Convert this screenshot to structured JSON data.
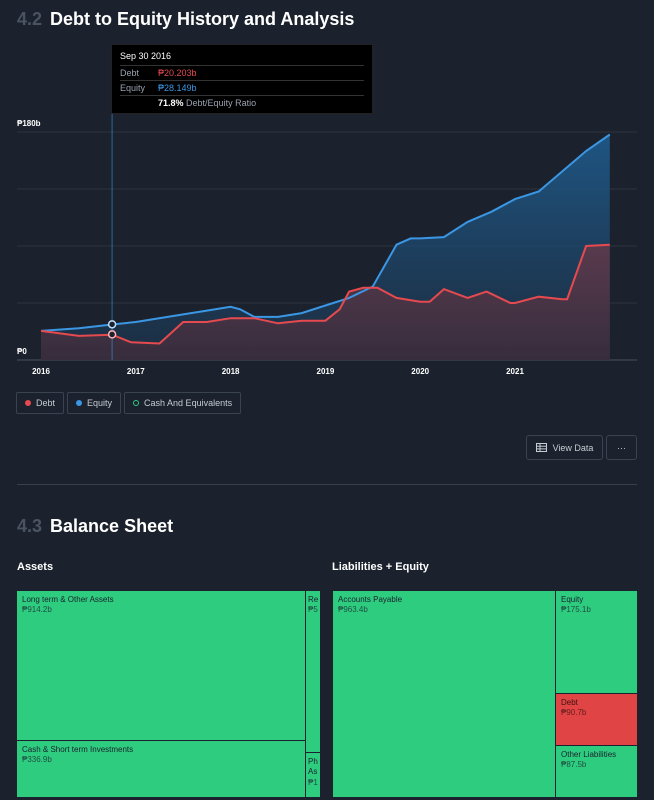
{
  "section_42": {
    "number": "4.2",
    "title": "Debt to Equity History and Analysis"
  },
  "tooltip": {
    "date": "Sep 30 2016",
    "debt_label": "Debt",
    "debt_value": "₱20.203b",
    "equity_label": "Equity",
    "equity_value": "₱28.149b",
    "ratio_value": "71.8%",
    "ratio_label": "Debt/Equity Ratio"
  },
  "legend": [
    {
      "label": "Debt",
      "color": "#e64a4f"
    },
    {
      "label": "Equity",
      "color": "#3b96e3"
    },
    {
      "label": "Cash And Equivalents",
      "color": "#2ecc7f"
    }
  ],
  "buttons": {
    "view_data": "View Data",
    "more": "···"
  },
  "chart_data": {
    "type": "area",
    "ytick_labels": [
      "₱180b",
      "₱0"
    ],
    "ylim": [
      0,
      180
    ],
    "xlim": [
      2016,
      2022.2
    ],
    "x_ticks": [
      2016,
      2017,
      2018,
      2019,
      2020,
      2021
    ],
    "x_tick_labels": [
      "2016",
      "2017",
      "2018",
      "2019",
      "2020",
      "2021"
    ],
    "grid": true,
    "series": [
      {
        "name": "Debt",
        "color": "#e64a4f",
        "x": [
          2016.0,
          2016.4,
          2016.75,
          2016.95,
          2017.25,
          2017.5,
          2017.6,
          2017.75,
          2018.0,
          2018.25,
          2018.5,
          2018.75,
          2019.0,
          2019.15,
          2019.25,
          2019.4,
          2019.55,
          2019.75,
          2020.0,
          2020.1,
          2020.25,
          2020.5,
          2020.7,
          2020.95,
          2021.0,
          2021.25,
          2021.5,
          2021.55,
          2021.75,
          2022.0
        ],
        "y": [
          23,
          19,
          20,
          14,
          13,
          30,
          30,
          30,
          33,
          33,
          29,
          31,
          31,
          40,
          54,
          57,
          57,
          49,
          46,
          46,
          56,
          49,
          54,
          45,
          45,
          50,
          48,
          48,
          90,
          91
        ]
      },
      {
        "name": "Equity",
        "color": "#3b96e3",
        "x": [
          2016.0,
          2016.4,
          2016.75,
          2017.0,
          2017.5,
          2017.75,
          2018.0,
          2018.1,
          2018.25,
          2018.5,
          2018.75,
          2019.0,
          2019.25,
          2019.5,
          2019.75,
          2019.9,
          2020.0,
          2020.25,
          2020.5,
          2020.75,
          2021.0,
          2021.25,
          2021.5,
          2021.75,
          2022.0
        ],
        "y": [
          23,
          25,
          28,
          30,
          36,
          39,
          42,
          40,
          34,
          34,
          37,
          43,
          49,
          58,
          91,
          96,
          96,
          97,
          109,
          117,
          127,
          133,
          149,
          165,
          178
        ]
      }
    ],
    "highlight": {
      "x": 2016.75,
      "debt": 20.203,
      "equity": 28.149
    }
  },
  "section_43": {
    "number": "4.3",
    "title": "Balance Sheet"
  },
  "assets": {
    "title": "Assets",
    "blocks": [
      {
        "label": "Long term & Other Assets",
        "value": "₱914.2b"
      },
      {
        "label": "Cash & Short term Investments",
        "value": "₱336.9b"
      },
      {
        "label": "Re",
        "value": "₱5"
      },
      {
        "label": "Ph As",
        "value": "₱1"
      }
    ]
  },
  "liabilities": {
    "title": "Liabilities + Equity",
    "blocks": [
      {
        "label": "Accounts Payable",
        "value": "₱963.4b"
      },
      {
        "label": "Equity",
        "value": "₱175.1b"
      },
      {
        "label": "Debt",
        "value": "₱90.7b"
      },
      {
        "label": "Other Liabilities",
        "value": "₱87.5b"
      }
    ]
  }
}
